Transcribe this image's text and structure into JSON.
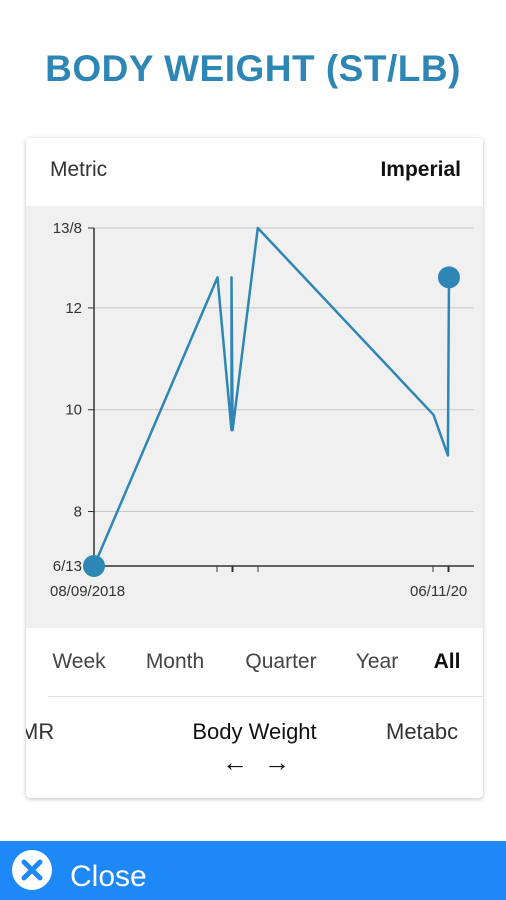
{
  "page": {
    "title": "BODY WEIGHT (ST/LB)"
  },
  "units": {
    "metric": "Metric",
    "imperial": "Imperial",
    "selected": "Imperial"
  },
  "ranges": [
    {
      "label": "Week",
      "active": false
    },
    {
      "label": "Month",
      "active": false
    },
    {
      "label": "Quarter",
      "active": false
    },
    {
      "label": "Year",
      "active": false
    },
    {
      "label": "All",
      "active": true
    }
  ],
  "metrics": {
    "left": "MR",
    "center": "Body Weight",
    "right": "Metabc"
  },
  "nav": {
    "prev_icon": "arrow-left-icon",
    "next_icon": "arrow-right-icon"
  },
  "close": {
    "label": "Close",
    "icon": "close-circle-icon"
  },
  "colors": {
    "accent": "#2e86b4",
    "close_bar": "#1e88f7",
    "line": "#2e86b4",
    "chart_bg": "#f0f0f0"
  },
  "chart_data": {
    "type": "line",
    "title": "",
    "xlabel": "",
    "ylabel": "",
    "x_tick_labels": [
      "08/09/2018",
      "06/11/20"
    ],
    "y_tick_labels": [
      "6/13",
      "8",
      "10",
      "12",
      "13/8"
    ],
    "y_ticks": [
      6.93,
      8,
      10,
      12,
      13.57
    ],
    "ylim": [
      6.93,
      13.57
    ],
    "grid": true,
    "series": [
      {
        "name": "",
        "values": [
          6.93,
          12.6,
          9.6,
          12.6,
          9.6,
          13.57,
          9.9,
          9.1,
          12.6
        ]
      }
    ],
    "x_index": [
      0,
      0.343,
      0.382,
      0.382,
      0.385,
      0.455,
      0.943,
      0.983,
      0.986
    ],
    "endpoint_markers": true
  }
}
